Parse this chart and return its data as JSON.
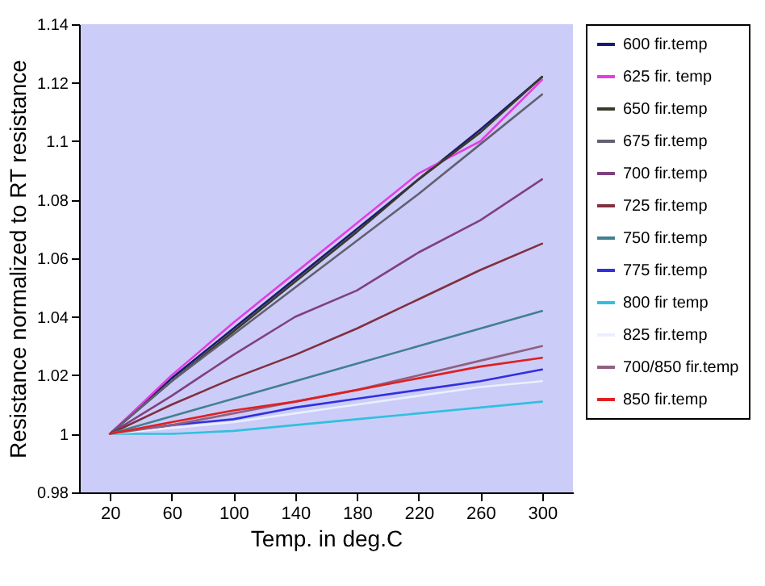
{
  "chart_data": {
    "type": "line",
    "xlabel": "Temp. in deg.C",
    "ylabel": "Resistance normalized to RT resistance",
    "categories": [
      "20",
      "60",
      "100",
      "140",
      "180",
      "220",
      "260",
      "300"
    ],
    "ylim": [
      0.98,
      1.14
    ],
    "yticks": [
      0.98,
      1,
      1.02,
      1.04,
      1.06,
      1.08,
      1.1,
      1.12,
      1.14
    ],
    "grid": false,
    "legend": "right",
    "marker": "none",
    "line_style": "solid",
    "series": [
      {
        "name": "600 fir.temp",
        "color": "#1a1a6e",
        "values": [
          1,
          1.019,
          1.036,
          1.053,
          1.07,
          1.087,
          1.104,
          1.122
        ]
      },
      {
        "name": "625 fir. temp",
        "color": "#e040e0",
        "values": [
          1,
          1.02,
          1.038,
          1.055,
          1.072,
          1.089,
          1.1,
          1.121
        ]
      },
      {
        "name": "650 fir.temp",
        "color": "#3a3a2a",
        "values": [
          1,
          1.018,
          1.035,
          1.052,
          1.069,
          1.087,
          1.103,
          1.122
        ]
      },
      {
        "name": "675 fir.temp",
        "color": "#606070",
        "values": [
          1,
          1.018,
          1.034,
          1.05,
          1.066,
          1.082,
          1.099,
          1.116
        ]
      },
      {
        "name": "700 fir.temp",
        "color": "#804080",
        "values": [
          1,
          1.013,
          1.027,
          1.04,
          1.049,
          1.062,
          1.073,
          1.087
        ]
      },
      {
        "name": "725 fir.temp",
        "color": "#803040",
        "values": [
          1,
          1.01,
          1.019,
          1.027,
          1.036,
          1.046,
          1.056,
          1.065
        ]
      },
      {
        "name": "750 fir.temp",
        "color": "#408090",
        "values": [
          1,
          1.006,
          1.012,
          1.018,
          1.024,
          1.03,
          1.036,
          1.042
        ]
      },
      {
        "name": "775 fir.temp",
        "color": "#3030e0",
        "values": [
          1,
          1.003,
          1.005,
          1.009,
          1.012,
          1.015,
          1.018,
          1.022
        ]
      },
      {
        "name": "800 fir temp",
        "color": "#30c0e0",
        "values": [
          1,
          1,
          1.001,
          1.003,
          1.005,
          1.007,
          1.009,
          1.011
        ]
      },
      {
        "name": "825 fir.temp",
        "color": "#e8f0ff",
        "values": [
          1,
          1.002,
          1.004,
          1.007,
          1.01,
          1.013,
          1.016,
          1.018
        ]
      },
      {
        "name": "700/850 fir.temp",
        "color": "#906080",
        "values": [
          1,
          1.003,
          1.007,
          1.011,
          1.015,
          1.02,
          1.025,
          1.03
        ]
      },
      {
        "name": "850 fir.temp",
        "color": "#e02020",
        "values": [
          1,
          1.004,
          1.008,
          1.011,
          1.015,
          1.019,
          1.023,
          1.026
        ]
      }
    ]
  }
}
